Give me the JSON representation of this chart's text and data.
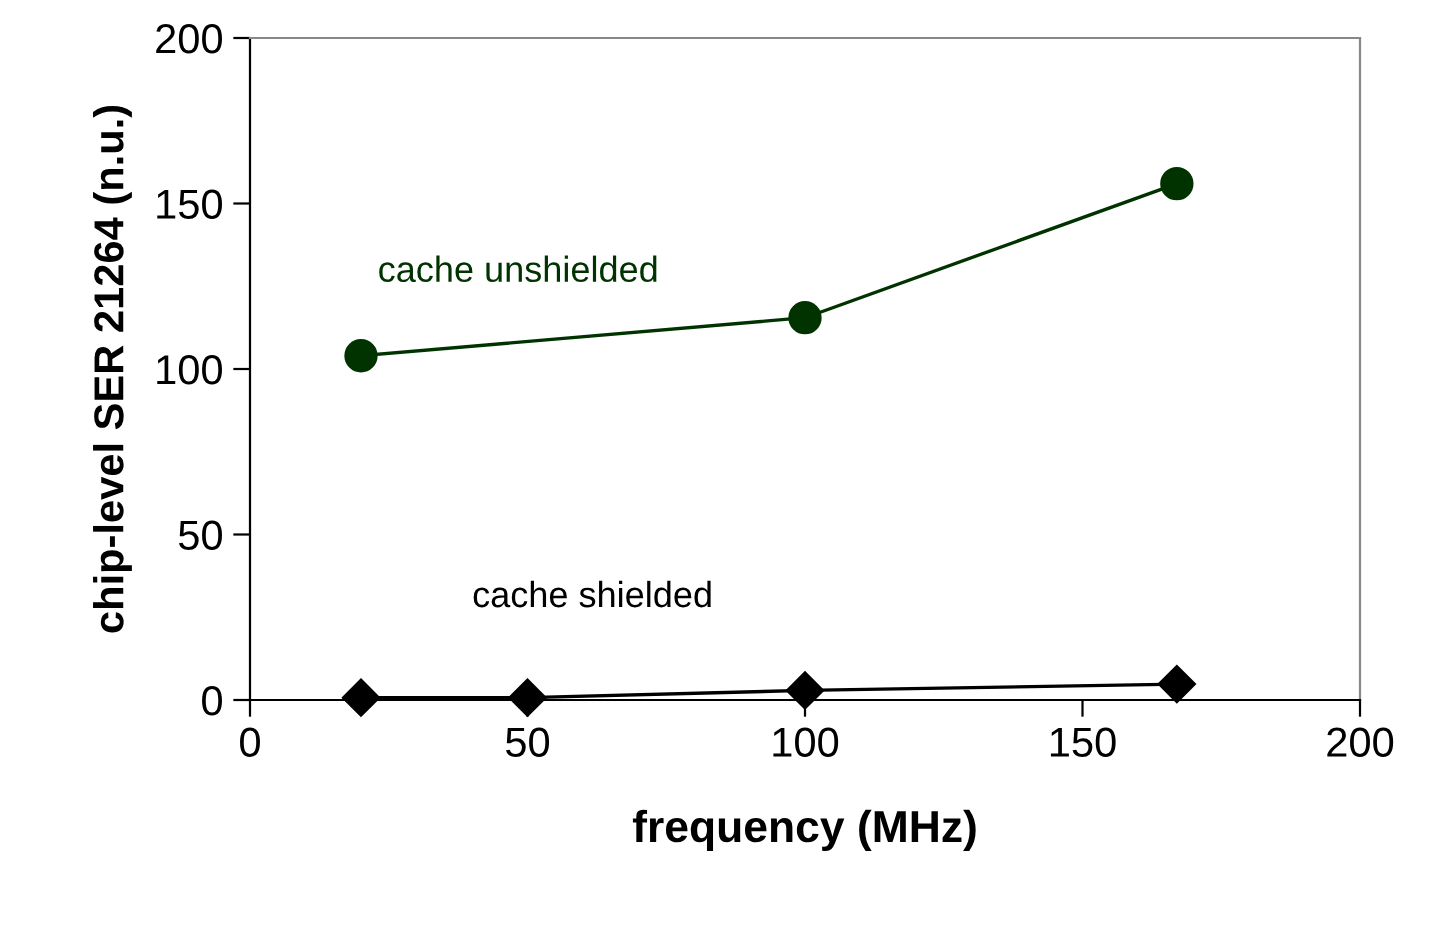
{
  "chart_data": {
    "type": "line",
    "xlabel": "frequency (MHz)",
    "ylabel": "chip-level SER 21264 (n.u.)",
    "xlim": [
      0,
      200
    ],
    "xticks": [
      0,
      50,
      100,
      150,
      200
    ],
    "ylim": [
      0,
      200
    ],
    "yticks": [
      0,
      50,
      100,
      150,
      200
    ],
    "grid": false,
    "legend": false,
    "series": [
      {
        "name": "cache unshielded",
        "color": "#003300",
        "marker": "circle",
        "x": [
          20,
          100,
          167
        ],
        "values": [
          104,
          115.5,
          156
        ]
      },
      {
        "name": "cache shielded",
        "color": "#000000",
        "marker": "diamond",
        "x": [
          20,
          50,
          100,
          167
        ],
        "values": [
          0.7,
          0.7,
          2.9,
          4.8
        ]
      }
    ]
  }
}
